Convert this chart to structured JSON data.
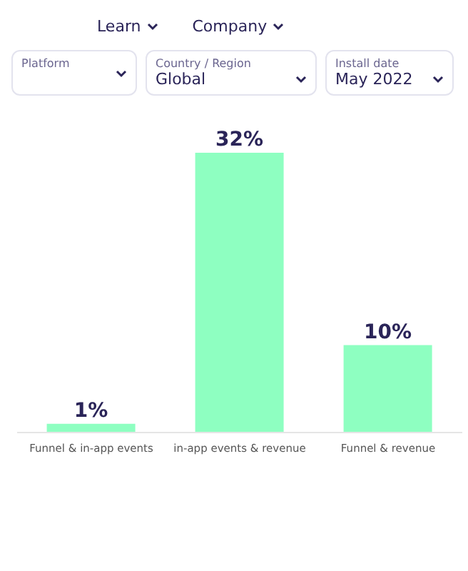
{
  "chart_data": {
    "type": "bar",
    "categories": [
      "Funnel & in-app events",
      "in-app events & revenue",
      "Funnel & revenue"
    ],
    "values": [
      1,
      32,
      10
    ],
    "color": "#8effc1",
    "value_labels": [
      "1%",
      "32%",
      "10%"
    ],
    "annotations": [
      "Learn",
      "Company",
      "Platform",
      "Country / Region",
      "Global",
      "Install date",
      "May 2022"
    ]
  }
}
